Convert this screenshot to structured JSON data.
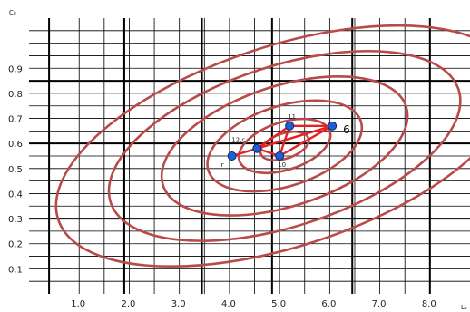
{
  "chart_data": {
    "type": "line",
    "ylabel": "C₈",
    "xlabel": "Lₐ",
    "xticks": [
      "1.0",
      "2.0",
      "3.0",
      "4.0",
      "5.0",
      "6.0",
      "7.0",
      "8.0"
    ],
    "xtick_values": [
      1.0,
      2.0,
      3.0,
      4.0,
      5.0,
      6.0,
      7.0,
      8.0
    ],
    "yticks": [
      "0.1",
      "0.2",
      "0.3",
      "0.4",
      "0.5",
      "0.6",
      "0.7",
      "0.8",
      "0.9"
    ],
    "ytick_values": [
      0.1,
      0.2,
      0.3,
      0.4,
      0.5,
      0.6,
      0.7,
      0.8,
      0.9
    ],
    "xlim": [
      0.0,
      8.8
    ],
    "ylim": [
      0.0,
      1.1
    ],
    "grid": true,
    "contours": {
      "color": "#b94a4a",
      "center": [
        5.1,
        0.59
      ],
      "ellipses": [
        {
          "rx": 0.5,
          "ry": 0.05
        },
        {
          "rx": 0.95,
          "ry": 0.095
        },
        {
          "rx": 1.6,
          "ry": 0.16
        },
        {
          "rx": 2.55,
          "ry": 0.24
        },
        {
          "rx": 3.65,
          "ry": 0.32
        },
        {
          "rx": 4.75,
          "ry": 0.4
        }
      ]
    },
    "points": [
      {
        "label": "r",
        "x": 4.05,
        "y": 0.55
      },
      {
        "label": "12,c",
        "x": 4.55,
        "y": 0.58
      },
      {
        "label": "11",
        "x": 5.2,
        "y": 0.67
      },
      {
        "label": "10",
        "x": 5.0,
        "y": 0.55
      },
      {
        "label": "6",
        "x": 6.05,
        "y": 0.67
      }
    ],
    "edges": [
      [
        "r",
        "12,c"
      ],
      [
        "12,c",
        "11"
      ],
      [
        "12,c",
        "10"
      ],
      [
        "12,c",
        "6"
      ],
      [
        "11",
        "10"
      ],
      [
        "11",
        "6"
      ],
      [
        "10",
        "6"
      ]
    ],
    "point_color": "#1f5fd6",
    "edge_color": "#e52222"
  }
}
